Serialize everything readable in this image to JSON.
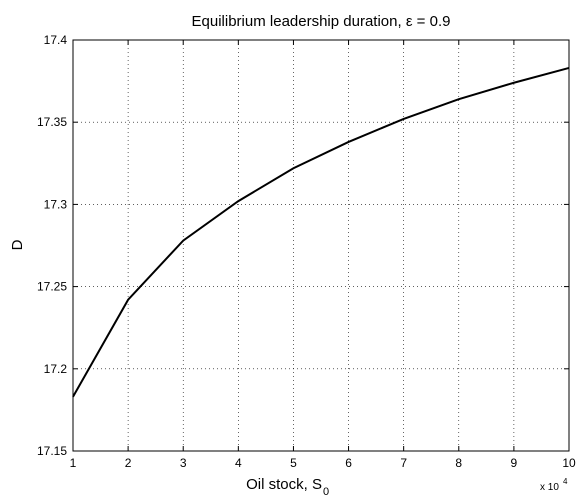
{
  "chart_data": {
    "type": "line",
    "title": "Equilibrium leadership duration, ε = 0.9",
    "xlabel": "Oil stock, S",
    "xlabel_subscript": "0",
    "ylabel": "D",
    "x_multiplier": "x 10",
    "x_multiplier_exponent": "4",
    "x": [
      1,
      2,
      3,
      4,
      5,
      6,
      7,
      8,
      9,
      10
    ],
    "series": [
      {
        "name": "D",
        "color": "#000000",
        "values": [
          17.183,
          17.242,
          17.278,
          17.302,
          17.322,
          17.338,
          17.352,
          17.364,
          17.374,
          17.383
        ]
      }
    ],
    "xlim": [
      1,
      10
    ],
    "xticks": [
      1,
      2,
      3,
      4,
      5,
      6,
      7,
      8,
      9,
      10
    ],
    "ylim": [
      17.15,
      17.4
    ],
    "yticks": [
      17.15,
      17.2,
      17.25,
      17.3,
      17.35,
      17.4
    ],
    "grid": true
  }
}
